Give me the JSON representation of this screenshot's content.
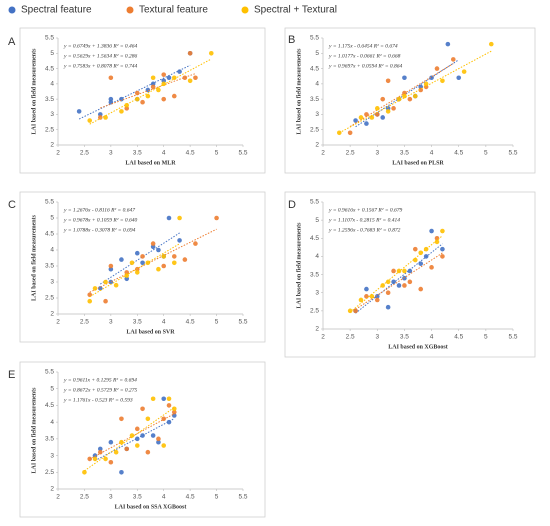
{
  "chart_data": [
    {
      "type": "scatter",
      "label": "A",
      "xlabel": "LAI based on MLR",
      "ylabel": "LAI based on field measurements",
      "xlim": [
        2,
        5.5
      ],
      "ylim": [
        2,
        5.5
      ],
      "xticks": [
        2,
        2.5,
        3,
        3.5,
        4,
        4.5,
        5,
        5.5
      ],
      "yticks": [
        2,
        2.5,
        3,
        3.5,
        4,
        4.5,
        5,
        5.5
      ],
      "grid": false,
      "annotations": [
        "y = 0.6749x + 1.3836   R² = 0.464",
        "y = 0.5629x + 1.5634   R² = 0.286",
        "y = 0.7583x + 0.8078   R² = 0.744"
      ],
      "series": [
        {
          "name": "Spectral feature",
          "color": "#4472c4",
          "x": [
            2.4,
            2.8,
            3.0,
            3.0,
            3.2,
            3.5,
            3.7,
            3.8,
            4.0,
            4.1,
            4.3,
            4.5
          ],
          "values": [
            3.1,
            3.0,
            3.4,
            3.5,
            3.5,
            3.5,
            3.8,
            4.0,
            4.1,
            4.2,
            4.4,
            5.0
          ]
        },
        {
          "name": "Textural feature",
          "color": "#ed7d31",
          "x": [
            2.8,
            3.0,
            3.3,
            3.5,
            3.6,
            3.8,
            4.0,
            4.0,
            4.2,
            4.4,
            4.6,
            4.5
          ],
          "values": [
            2.9,
            4.2,
            3.2,
            3.7,
            3.4,
            3.9,
            3.5,
            4.3,
            3.6,
            4.2,
            4.2,
            5.0
          ]
        },
        {
          "name": "Spectral + Textural",
          "color": "#ffc000",
          "x": [
            2.6,
            2.9,
            3.2,
            3.3,
            3.5,
            3.7,
            3.8,
            3.9,
            4.0,
            4.2,
            4.5,
            4.9
          ],
          "values": [
            2.8,
            2.9,
            3.1,
            3.3,
            3.5,
            3.6,
            4.2,
            3.8,
            4.0,
            4.2,
            4.1,
            5.0
          ]
        }
      ]
    },
    {
      "type": "scatter",
      "label": "B",
      "xlabel": "LAI based on PLSR",
      "ylabel": "LAI based on field measurements",
      "xlim": [
        2,
        5.5
      ],
      "ylim": [
        2,
        5.5
      ],
      "xticks": [
        2,
        2.5,
        3,
        3.5,
        4,
        4.5,
        5,
        5.5
      ],
      "yticks": [
        2,
        2.5,
        3,
        3.5,
        4,
        4.5,
        5,
        5.5
      ],
      "grid": false,
      "annotations": [
        "y = 1.175x - 0.6454   R² = 0.674",
        "y = 1.0177x - 0.0661   R² = 0.668",
        "y = 0.9697x + 0.0594   R² = 0.864"
      ],
      "series": [
        {
          "name": "Spectral feature",
          "color": "#4472c4",
          "x": [
            2.6,
            2.8,
            3.0,
            3.1,
            3.2,
            3.4,
            3.5,
            3.7,
            3.8,
            4.0,
            4.3,
            4.5
          ],
          "values": [
            2.8,
            2.7,
            3.0,
            2.9,
            3.2,
            3.5,
            4.2,
            3.6,
            3.9,
            4.2,
            5.3,
            4.2
          ]
        },
        {
          "name": "Textural feature",
          "color": "#ed7d31",
          "x": [
            2.5,
            2.8,
            3.0,
            3.1,
            3.2,
            3.3,
            3.5,
            3.6,
            3.8,
            3.9,
            4.1,
            4.4
          ],
          "values": [
            2.4,
            3.0,
            3.0,
            3.5,
            4.1,
            3.2,
            3.7,
            3.5,
            3.8,
            3.9,
            4.5,
            4.8
          ]
        },
        {
          "name": "Spectral + Textural",
          "color": "#ffc000",
          "x": [
            2.3,
            2.7,
            2.9,
            3.0,
            3.2,
            3.4,
            3.5,
            3.7,
            3.9,
            4.2,
            4.6,
            5.1
          ],
          "values": [
            2.4,
            2.9,
            2.9,
            3.2,
            3.1,
            3.5,
            3.6,
            3.6,
            4.0,
            4.1,
            4.4,
            5.3
          ]
        }
      ]
    },
    {
      "type": "scatter",
      "label": "C",
      "xlabel": "LAI based on SVR",
      "ylabel": "LAI based on field measurements",
      "xlim": [
        2,
        5.5
      ],
      "ylim": [
        2,
        5.5
      ],
      "xticks": [
        2,
        2.5,
        3,
        3.5,
        4,
        4.5,
        5,
        5.5
      ],
      "yticks": [
        2,
        2.5,
        3,
        3.5,
        4,
        4.5,
        5,
        5.5
      ],
      "grid": false,
      "annotations": [
        "y = 1.2676x - 0.8116   R² = 0.647",
        "y = 0.9678x + 0.1059   R² = 0.640",
        "y = 1.0788x - 0.3078   R² = 0.694"
      ],
      "series": [
        {
          "name": "Spectral feature",
          "color": "#4472c4",
          "x": [
            2.8,
            3.0,
            3.0,
            3.2,
            3.3,
            3.5,
            3.6,
            3.8,
            3.9,
            4.0,
            4.1,
            4.3
          ],
          "values": [
            2.8,
            3.0,
            3.4,
            3.7,
            3.1,
            3.9,
            3.6,
            4.1,
            4.0,
            3.8,
            5.0,
            4.3
          ]
        },
        {
          "name": "Textural feature",
          "color": "#ed7d31",
          "x": [
            2.6,
            2.9,
            3.0,
            3.3,
            3.5,
            3.6,
            3.8,
            4.0,
            4.2,
            4.4,
            4.6,
            5.0
          ],
          "values": [
            2.6,
            2.4,
            3.5,
            3.3,
            3.4,
            3.8,
            4.2,
            3.5,
            3.8,
            3.7,
            4.2,
            5.0
          ]
        },
        {
          "name": "Spectral + Textural",
          "color": "#ffc000",
          "x": [
            2.6,
            2.7,
            2.9,
            3.1,
            3.3,
            3.4,
            3.5,
            3.7,
            3.9,
            4.0,
            4.2,
            4.3
          ],
          "values": [
            2.4,
            2.8,
            3.0,
            2.9,
            3.2,
            3.6,
            3.3,
            3.6,
            3.4,
            3.8,
            3.6,
            5.0
          ]
        }
      ]
    },
    {
      "type": "scatter",
      "label": "D",
      "xlabel": "LAI based on XGBoost",
      "ylabel": "LAI based on field measurements",
      "xlim": [
        2,
        5.5
      ],
      "ylim": [
        2,
        5.5
      ],
      "xticks": [
        2,
        2.5,
        3,
        3.5,
        4,
        4.5,
        5,
        5.5
      ],
      "yticks": [
        2,
        2.5,
        3,
        3.5,
        4,
        4.5,
        5,
        5.5
      ],
      "grid": false,
      "annotations": [
        "y = 0.9616x + 0.1567   R² = 0.679",
        "y = 1.1107x - 0.2815   R² = 0.414",
        "y = 1.2596x - 0.7683   R² = 0.872"
      ],
      "series": [
        {
          "name": "Spectral feature",
          "color": "#4472c4",
          "x": [
            2.6,
            2.8,
            3.0,
            3.2,
            3.3,
            3.4,
            3.5,
            3.6,
            3.8,
            3.9,
            4.0,
            4.2
          ],
          "values": [
            2.5,
            3.1,
            2.9,
            2.6,
            3.3,
            3.2,
            3.4,
            3.6,
            3.8,
            4.0,
            4.7,
            4.2
          ]
        },
        {
          "name": "Textural feature",
          "color": "#ed7d31",
          "x": [
            2.6,
            2.8,
            3.0,
            3.2,
            3.3,
            3.5,
            3.6,
            3.7,
            3.8,
            4.0,
            4.1,
            4.2
          ],
          "values": [
            2.5,
            2.9,
            2.8,
            3.0,
            3.6,
            3.2,
            3.3,
            4.2,
            3.1,
            3.7,
            4.5,
            4.0
          ]
        },
        {
          "name": "Spectral + Textural",
          "color": "#ffc000",
          "x": [
            2.5,
            2.7,
            2.9,
            3.1,
            3.2,
            3.4,
            3.5,
            3.7,
            3.8,
            3.9,
            4.1,
            4.2
          ],
          "values": [
            2.5,
            2.8,
            2.9,
            3.2,
            3.3,
            3.6,
            3.6,
            3.9,
            4.1,
            4.2,
            4.4,
            4.7
          ]
        }
      ]
    },
    {
      "type": "scatter",
      "label": "E",
      "xlabel": "LAI based on SSA XGBoost",
      "ylabel": "LAI based on field measurements",
      "xlim": [
        2,
        5.5
      ],
      "ylim": [
        2,
        5.5
      ],
      "xticks": [
        2,
        2.5,
        3,
        3.5,
        4,
        4.5,
        5,
        5.5
      ],
      "yticks": [
        2,
        2.5,
        3,
        3.5,
        4,
        4.5,
        5,
        5.5
      ],
      "grid": false,
      "annotations": [
        "y = 0.9611x + 0.1295   R² = 0.694",
        "y = 0.8672x + 0.5729   R² = 0.275",
        "y = 1.1761x - 0.523   R² = 0.593"
      ],
      "series": [
        {
          "name": "Spectral feature",
          "color": "#4472c4",
          "x": [
            2.7,
            2.8,
            3.0,
            3.2,
            3.3,
            3.5,
            3.6,
            3.8,
            3.9,
            4.0,
            4.1,
            4.2
          ],
          "values": [
            3.0,
            3.2,
            3.4,
            2.5,
            3.2,
            3.5,
            3.6,
            3.6,
            3.4,
            4.7,
            4.0,
            4.2
          ]
        },
        {
          "name": "Textural feature",
          "color": "#ed7d31",
          "x": [
            2.6,
            2.8,
            3.0,
            3.2,
            3.3,
            3.5,
            3.6,
            3.7,
            3.9,
            4.0,
            4.1,
            4.2
          ],
          "values": [
            2.9,
            3.1,
            2.8,
            4.1,
            3.2,
            3.8,
            4.4,
            3.1,
            3.5,
            4.1,
            4.5,
            4.3
          ]
        },
        {
          "name": "Spectral + Textural",
          "color": "#ffc000",
          "x": [
            2.5,
            2.7,
            2.9,
            3.1,
            3.2,
            3.4,
            3.5,
            3.7,
            3.8,
            4.0,
            4.1,
            4.2
          ],
          "values": [
            2.5,
            2.9,
            2.9,
            3.1,
            3.4,
            3.6,
            3.3,
            4.1,
            4.7,
            3.3,
            4.7,
            4.4
          ]
        }
      ]
    }
  ]
}
